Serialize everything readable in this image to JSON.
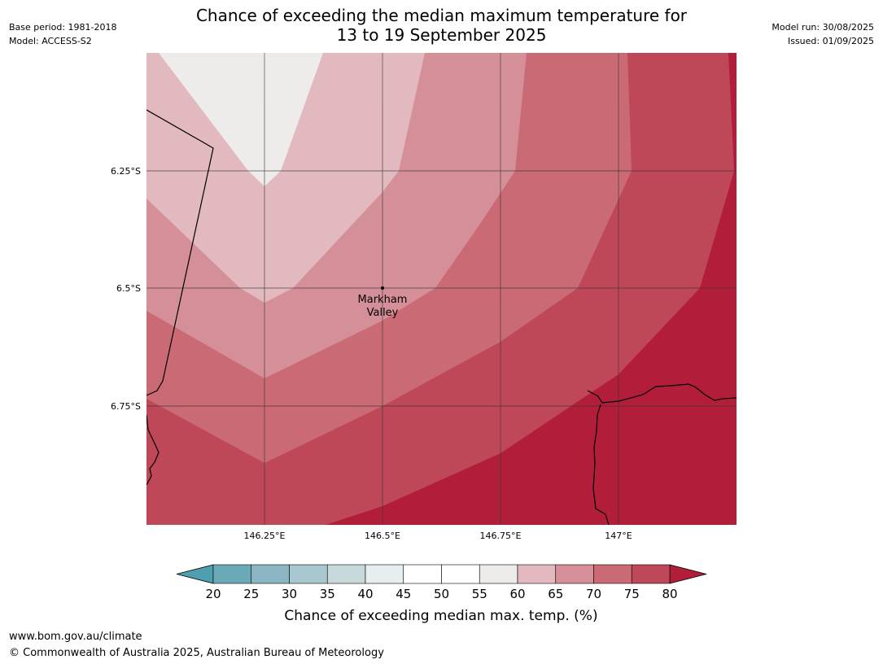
{
  "header": {
    "title_line1": "Chance of exceeding the median maximum temperature for",
    "title_line2": "13 to 19 September 2025",
    "base_period": "Base period: 1981-2018",
    "model": "Model: ACCESS-S2",
    "model_run": "Model run: 30/08/2025",
    "issued": "Issued: 01/09/2025"
  },
  "map": {
    "lat_labels": [
      "6.25°S",
      "6.5°S",
      "6.75°S"
    ],
    "lon_labels": [
      "146.25°E",
      "146.5°E",
      "146.75°E",
      "147°E"
    ],
    "place": {
      "name_line1": "Markham",
      "name_line2": "Valley"
    }
  },
  "legend": {
    "title": "Chance of exceeding median max. temp. (%)",
    "ticks": [
      "20",
      "25",
      "30",
      "35",
      "40",
      "45",
      "50",
      "55",
      "60",
      "65",
      "70",
      "75",
      "80"
    ],
    "colors": [
      "#6aaab8",
      "#8ab6c4",
      "#a7c6cd",
      "#c8d9dc",
      "#e7eef0",
      "#ffffff",
      "#ffffff",
      "#eeecea",
      "#e1b9be",
      "#d58f98",
      "#c96a75",
      "#bf4858"
    ],
    "under_color": "#4ea0b1",
    "over_color": "#b21e3a"
  },
  "footer": {
    "url": "www.bom.gov.au/climate",
    "copyright": "© Commonwealth of Australia 2025, Australian Bureau of Meteorology"
  }
}
